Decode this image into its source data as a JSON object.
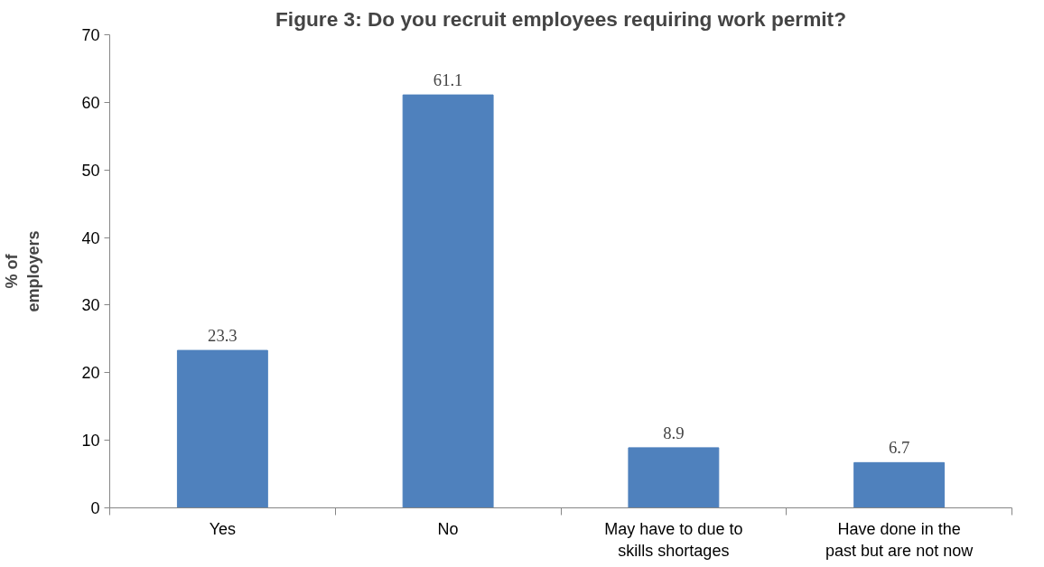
{
  "chart_data": {
    "type": "bar",
    "title": "Figure 3: Do you recruit employees requiring work permit?",
    "ylabel": "% of\nemployers",
    "categories": [
      "Yes",
      "No",
      "May have to due to\nskills shortages",
      "Have done in the\npast but are not now"
    ],
    "values": [
      23.3,
      61.1,
      8.9,
      6.7
    ],
    "color": "#4f81bd",
    "ylim": [
      0,
      70
    ],
    "yticks": [
      0,
      10,
      20,
      30,
      40,
      50,
      60,
      70
    ],
    "grid": false,
    "data_labels": true
  }
}
